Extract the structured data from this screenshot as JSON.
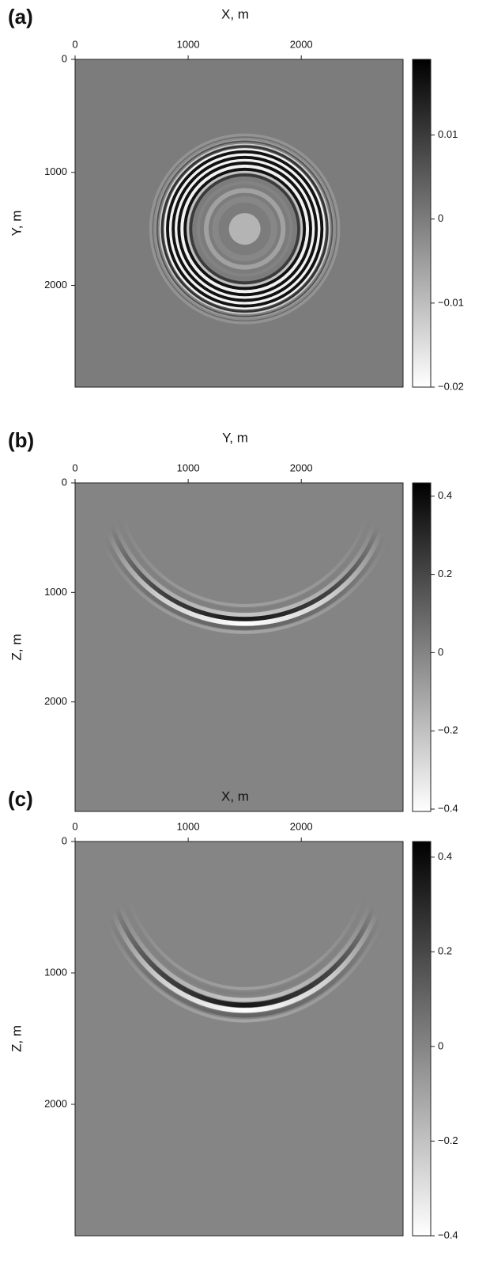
{
  "chart_data": [
    {
      "type": "heatmap",
      "panel_label": "(a)",
      "xlabel": "X, m",
      "ylabel": "Y, m",
      "xlim": [
        0,
        2900
      ],
      "ylim": [
        0,
        2900
      ],
      "xticks": [
        0,
        1000,
        2000
      ],
      "yticks": [
        0,
        1000,
        2000
      ],
      "y_inverted": true,
      "colorbar": {
        "clim": [
          -0.02,
          0.019
        ],
        "cmap": "gray_r",
        "ticks": [
          0.01,
          0,
          {
            "value": -0.01,
            "label": "−0.01"
          },
          {
            "value": -0.02,
            "label": "−0.02"
          }
        ]
      }
    },
    {
      "type": "heatmap",
      "panel_label": "(b)",
      "xlabel": "Y, m",
      "ylabel": "Z, m",
      "xlim": [
        0,
        2900
      ],
      "ylim": [
        0,
        3000
      ],
      "xticks": [
        0,
        1000,
        2000
      ],
      "yticks": [
        0,
        1000,
        2000
      ],
      "y_inverted": true,
      "colorbar": {
        "clim": [
          -0.406,
          0.434
        ],
        "cmap": "gray_r",
        "ticks": [
          0.4,
          0.2,
          0,
          {
            "value": -0.2,
            "label": "−0.2"
          },
          {
            "value": -0.4,
            "label": "−0.4"
          }
        ]
      }
    },
    {
      "type": "heatmap",
      "panel_label": "(c)",
      "xlabel": "X, m",
      "ylabel": "Z, m",
      "xlim": [
        0,
        2900
      ],
      "ylim": [
        0,
        3000
      ],
      "xticks": [
        0,
        1000,
        2000
      ],
      "yticks": [
        0,
        1000,
        2000
      ],
      "y_inverted": true,
      "colorbar": {
        "clim": [
          -0.4,
          0.433
        ],
        "cmap": "gray_r",
        "ticks": [
          0.4,
          0.2,
          0,
          {
            "value": -0.2,
            "label": "−0.2"
          },
          {
            "value": -0.4,
            "label": "−0.4"
          }
        ]
      }
    }
  ]
}
